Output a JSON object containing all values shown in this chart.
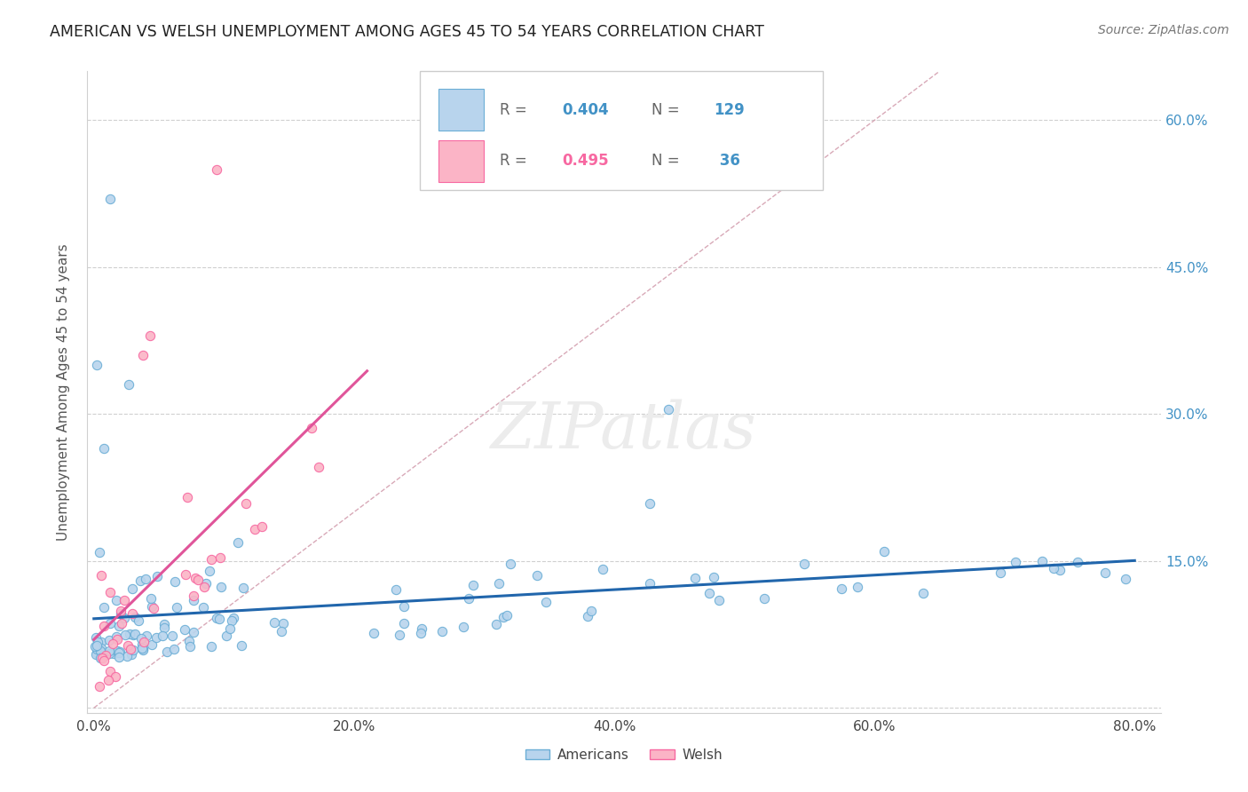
{
  "title": "AMERICAN VS WELSH UNEMPLOYMENT AMONG AGES 45 TO 54 YEARS CORRELATION CHART",
  "source": "Source: ZipAtlas.com",
  "ylabel": "Unemployment Among Ages 45 to 54 years",
  "xlim": [
    -0.005,
    0.82
  ],
  "ylim": [
    -0.005,
    0.65
  ],
  "xticks": [
    0.0,
    0.2,
    0.4,
    0.6,
    0.8
  ],
  "xticklabels": [
    "0.0%",
    "20.0%",
    "40.0%",
    "60.0%",
    "80.0%"
  ],
  "yticks": [
    0.0,
    0.15,
    0.3,
    0.45,
    0.6
  ],
  "yticklabels_right": [
    "",
    "15.0%",
    "30.0%",
    "45.0%",
    "60.0%"
  ],
  "americans_R": 0.404,
  "americans_N": 129,
  "welsh_R": 0.495,
  "welsh_N": 36,
  "am_scatter_face": "#b8d4ed",
  "am_scatter_edge": "#6baed6",
  "welsh_scatter_face": "#fbb4c6",
  "welsh_scatter_edge": "#f768a1",
  "am_line_color": "#2166ac",
  "welsh_line_color": "#e0559a",
  "diag_color": "#d4a0b0",
  "grid_color": "#d0d0d0",
  "background_color": "#ffffff",
  "right_tick_color": "#4292c6",
  "watermark": "ZIPatlas",
  "watermark_color": "#ececec",
  "legend_edge_color": "#cccccc",
  "legend_R_label_color": "#666666",
  "legend_N_label_color": "#4292c6",
  "legend_R_val_am_color": "#4292c6",
  "legend_R_val_welsh_color": "#f768a1",
  "legend_N_val_color": "#4292c6"
}
